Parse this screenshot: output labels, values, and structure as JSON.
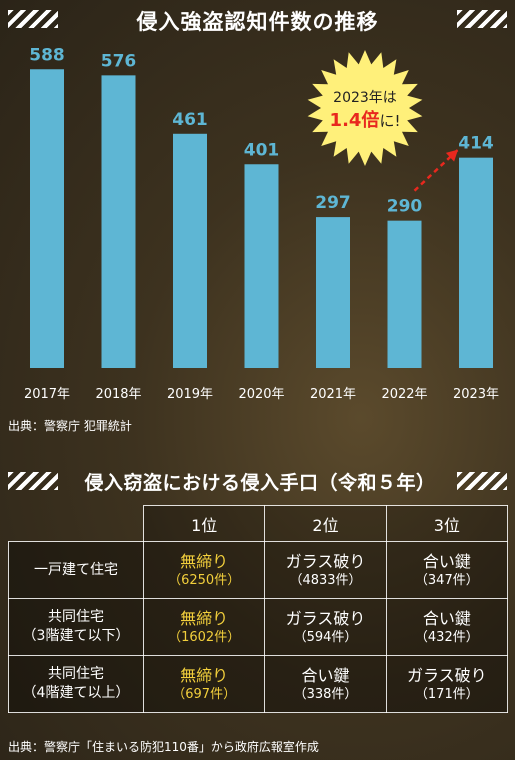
{
  "chart_data": {
    "type": "bar",
    "title": "侵入強盗認知件数の推移",
    "categories": [
      "2017年",
      "2018年",
      "2019年",
      "2020年",
      "2021年",
      "2022年",
      "2023年"
    ],
    "values": [
      588,
      576,
      461,
      401,
      297,
      290,
      414
    ],
    "bar_color": "#5eb6d4",
    "ylim": [
      0,
      620
    ],
    "annotation": {
      "line1": "2023年は",
      "line2_highlight": "1.4倍",
      "line2_suffix": "に!",
      "burst_color": "#fff07a",
      "highlight_color": "#e8281e",
      "arrow_color": "#e8281e"
    }
  },
  "chart_source": "出典：警察庁 犯罪統計",
  "table": {
    "title": "侵入窃盗における侵入手口（令和５年）",
    "headers": [
      "1位",
      "2位",
      "3位"
    ],
    "rows": [
      {
        "label_line1": "一戸建て住宅",
        "label_line2": "",
        "cells": [
          {
            "method": "無締り",
            "count": "（6250件）"
          },
          {
            "method": "ガラス破り",
            "count": "（4833件）"
          },
          {
            "method": "合い鍵",
            "count": "（347件）"
          }
        ]
      },
      {
        "label_line1": "共同住宅",
        "label_line2": "（3階建て以下）",
        "cells": [
          {
            "method": "無締り",
            "count": "（1602件）"
          },
          {
            "method": "ガラス破り",
            "count": "（594件）"
          },
          {
            "method": "合い鍵",
            "count": "（432件）"
          }
        ]
      },
      {
        "label_line1": "共同住宅",
        "label_line2": "（4階建て以上）",
        "cells": [
          {
            "method": "無締り",
            "count": "（697件）"
          },
          {
            "method": "合い鍵",
            "count": "（338件）"
          },
          {
            "method": "ガラス破り",
            "count": "（171件）"
          }
        ]
      }
    ],
    "highlight_color": "#f2cf3c",
    "source": "出典：警察庁「住まいる防犯110番」から政府広報室作成"
  }
}
